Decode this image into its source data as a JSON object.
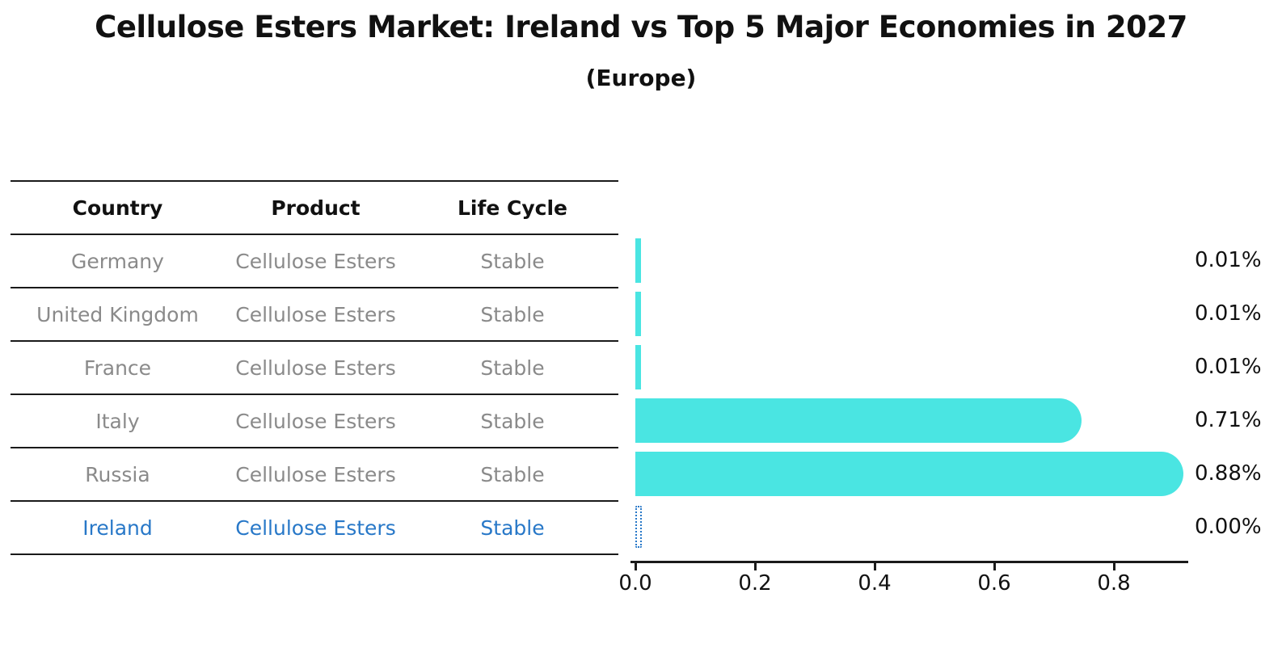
{
  "chart_data": {
    "type": "bar",
    "orientation": "horizontal",
    "title": "Cellulose Esters Market: Ireland vs Top 5 Major Economies in 2027",
    "subtitle": "(Europe)",
    "categories": [
      "Germany",
      "United Kingdom",
      "France",
      "Italy",
      "Russia",
      "Ireland"
    ],
    "values": [
      0.01,
      0.01,
      0.01,
      0.71,
      0.88,
      0.0
    ],
    "value_labels": [
      "0.01%",
      "0.01%",
      "0.01%",
      "0.71%",
      "0.88%",
      "0.00%"
    ],
    "xlabel": "",
    "ylabel": "",
    "xlim": [
      0.0,
      0.92
    ],
    "x_ticks": [
      "0.0",
      "0.2",
      "0.4",
      "0.6",
      "0.8"
    ],
    "x_tick_values": [
      0.0,
      0.2,
      0.4,
      0.6,
      0.8
    ],
    "grid": false,
    "legend": "none",
    "bar_color": "#4ae5e2",
    "highlight_index": 5,
    "highlight_color": "#2878c8"
  },
  "table": {
    "headers": {
      "country": "Country",
      "product": "Product",
      "life_cycle": "Life Cycle"
    },
    "rows": [
      {
        "country": "Germany",
        "product": "Cellulose Esters",
        "life_cycle": "Stable"
      },
      {
        "country": "United Kingdom",
        "product": "Cellulose Esters",
        "life_cycle": "Stable"
      },
      {
        "country": "France",
        "product": "Cellulose Esters",
        "life_cycle": "Stable"
      },
      {
        "country": "Italy",
        "product": "Cellulose Esters",
        "life_cycle": "Stable"
      },
      {
        "country": "Russia",
        "product": "Cellulose Esters",
        "life_cycle": "Stable"
      },
      {
        "country": "Ireland",
        "product": "Cellulose Esters",
        "life_cycle": "Stable"
      }
    ]
  }
}
